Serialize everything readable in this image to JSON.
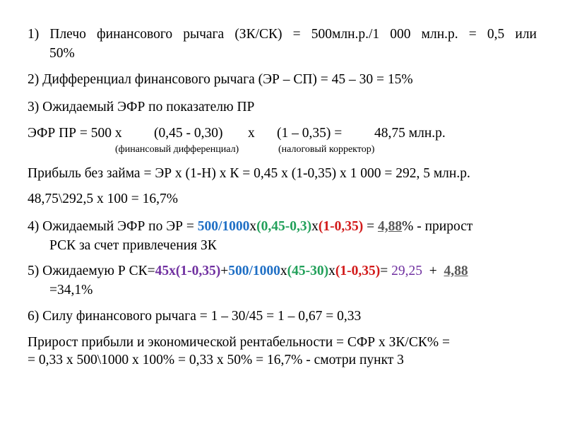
{
  "item1": {
    "line1": "1)  Плечо финансового рычага (ЗК/СК) = 500млн.р./1 000 млн.р. = 0,5 или",
    "line2": "50%"
  },
  "item2": "2) Дифференциал финансового рычага (ЭР – СП) = 45 – 30 = 15%",
  "item3": "3) Ожидаемый ЭФР по показателю ПР",
  "efr_pr": {
    "label": "ЭФР ПР = 500 х",
    "diff": "(0,45 - 0,30)",
    "x": "х",
    "tax": "(1 – 0,35) =",
    "result": "48,75 млн.р.",
    "note_diff": "(финансовый дифференциал)",
    "note_tax": "(налоговый корректор)"
  },
  "profit_no_loan": "Прибыль без займа = ЭР х (1-Н) х К = 0,45 х (1-0,35) х 1 000 = 292, 5 млн.р.",
  "ratio": "48,75\\292,5 х 100 = 16,7%",
  "item4": {
    "prefix": "4) Ожидаемый ЭФР по ЭР = ",
    "p1": "500/1000",
    "x1": "х",
    "p2": "(0,45-0,3)",
    "x2": "х",
    "p3": "(1-0,35)",
    "eq": " = ",
    "val": "4,88",
    "suffix": "% - прирост",
    "line2": "РСК за счет привлечения ЗК"
  },
  "item5": {
    "prefix": "5)  Ожидаемую  Р  СК=",
    "p1": "45х(1-0,35)",
    "plus1": "+",
    "p2": "500/1000",
    "x1": "х",
    "p3": "(45-30)",
    "x2": "х",
    "p4": "(1-0,35)",
    "eq": "=  ",
    "v1": "29,25",
    "plus2": "  +  ",
    "v2": "4,88",
    "line2": "=34,1%"
  },
  "item6": "6) Силу финансового рычага = 1 – 30/45 = 1 – 0,67 = 0,33",
  "growth": {
    "line1": "Прирост прибыли и экономической рентабельности = СФР х ЗК/СК% =",
    "line2": "= 0,33 х 500\\1000 х 100% = 0,33 х 50% = 16,7% - смотри пункт 3"
  },
  "colors": {
    "blue": "#1f6fc5",
    "green": "#22a05a",
    "red": "#d21a1a",
    "purple": "#7030a0",
    "gray": "#595959"
  }
}
